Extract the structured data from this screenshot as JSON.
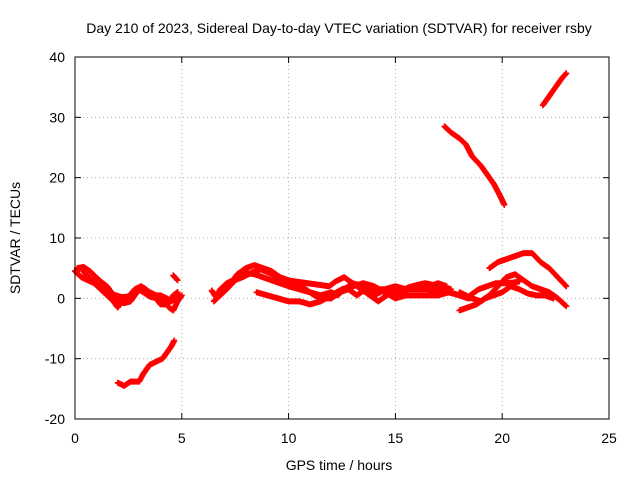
{
  "chart_data": {
    "type": "scatter",
    "title": "Day 210 of 2023, Sidereal Day-to-day VTEC variation (SDTVAR) for receiver rsby",
    "xlabel": "GPS time / hours",
    "ylabel": "SDTVAR / TECUs",
    "xlim": [
      0,
      25
    ],
    "ylim": [
      -20,
      40
    ],
    "xticks": [
      0,
      5,
      10,
      15,
      20,
      25
    ],
    "yticks": [
      -20,
      -10,
      0,
      10,
      20,
      30,
      40
    ],
    "grid": true,
    "legend": "none",
    "marker": "plus",
    "color": "#ff0000",
    "series": [
      {
        "name": "track-1",
        "points": [
          [
            0,
            4.5
          ],
          [
            0.3,
            3.5
          ],
          [
            0.6,
            3
          ],
          [
            0.9,
            2.5
          ],
          [
            1.2,
            1.5
          ],
          [
            1.5,
            0.5
          ],
          [
            1.8,
            -0.5
          ],
          [
            2.0,
            -1.5
          ],
          [
            2.2,
            -0.5
          ],
          [
            2.5,
            -0.5
          ],
          [
            2.7,
            0.8
          ],
          [
            3.0,
            1.5
          ],
          [
            3.2,
            1
          ],
          [
            3.5,
            0.3
          ],
          [
            3.8,
            0
          ],
          [
            4.0,
            -1
          ],
          [
            4.2,
            -1
          ],
          [
            4.4,
            -0.8
          ],
          [
            4.6,
            0.5
          ],
          [
            4.8,
            1
          ]
        ]
      },
      {
        "name": "track-2",
        "points": [
          [
            0,
            4.5
          ],
          [
            0.3,
            5
          ],
          [
            0.5,
            4
          ],
          [
            0.8,
            3
          ],
          [
            1.0,
            2.5
          ],
          [
            1.3,
            1.8
          ],
          [
            1.6,
            1
          ],
          [
            1.9,
            0.5
          ],
          [
            2.2,
            0.2
          ],
          [
            2.5,
            0.3
          ],
          [
            2.8,
            1.5
          ],
          [
            3.1,
            2
          ],
          [
            3.4,
            1
          ],
          [
            3.7,
            0.5
          ],
          [
            4.0,
            0.5
          ],
          [
            4.3,
            0
          ],
          [
            4.5,
            -0.5
          ],
          [
            4.7,
            0
          ],
          [
            4.8,
            1
          ]
        ]
      },
      {
        "name": "track-3",
        "points": [
          [
            0.1,
            5
          ],
          [
            0.4,
            5.2
          ],
          [
            0.7,
            4.5
          ],
          [
            0.9,
            3.8
          ],
          [
            1.2,
            2.8
          ],
          [
            1.5,
            2
          ],
          [
            1.8,
            0.5
          ],
          [
            2.0,
            -0.5
          ],
          [
            2.3,
            -0.8
          ],
          [
            2.6,
            -0.5
          ],
          [
            2.9,
            1
          ],
          [
            3.2,
            1.8
          ],
          [
            3.5,
            1
          ],
          [
            3.8,
            0.5
          ],
          [
            4.1,
            -0.3
          ],
          [
            4.4,
            -1.5
          ],
          [
            4.6,
            -2
          ],
          [
            4.8,
            -0.5
          ],
          [
            5.0,
            0.5
          ]
        ]
      },
      {
        "name": "track-4",
        "points": [
          [
            4.6,
            3.8
          ],
          [
            4.8,
            3
          ]
        ]
      },
      {
        "name": "track-5",
        "points": [
          [
            2.0,
            -14
          ],
          [
            2.3,
            -14.5
          ],
          [
            2.6,
            -13.8
          ],
          [
            3.0,
            -13.8
          ],
          [
            3.2,
            -12.5
          ],
          [
            3.5,
            -11
          ],
          [
            3.8,
            -10.5
          ],
          [
            4.1,
            -10
          ],
          [
            4.3,
            -9
          ],
          [
            4.5,
            -8
          ],
          [
            4.65,
            -7
          ]
        ]
      },
      {
        "name": "track-6",
        "points": [
          [
            6.4,
            1.3
          ],
          [
            6.6,
            0.2
          ],
          [
            6.8,
            1.5
          ],
          [
            7.1,
            2.5
          ],
          [
            7.4,
            3
          ],
          [
            7.7,
            4
          ],
          [
            8.0,
            4.2
          ],
          [
            8.4,
            4
          ],
          [
            8.8,
            3.5
          ],
          [
            9.2,
            3
          ],
          [
            9.6,
            2.5
          ],
          [
            10.0,
            2
          ],
          [
            10.5,
            1.5
          ],
          [
            11.0,
            1
          ],
          [
            11.5,
            0.5
          ],
          [
            12.0,
            1
          ],
          [
            12.3,
            0.5
          ],
          [
            12.6,
            1.5
          ],
          [
            13.0,
            2.5
          ],
          [
            13.5,
            2
          ],
          [
            14.0,
            1.5
          ],
          [
            14.5,
            1.5
          ],
          [
            15.0,
            2
          ],
          [
            15.5,
            1.5
          ],
          [
            16.0,
            1.5
          ],
          [
            16.5,
            1.5
          ],
          [
            17.0,
            1.2
          ],
          [
            17.5,
            1
          ],
          [
            18.0,
            0.5
          ],
          [
            18.4,
            0
          ]
        ]
      },
      {
        "name": "track-7",
        "points": [
          [
            6.5,
            -0.5
          ],
          [
            6.8,
            0.5
          ],
          [
            7.1,
            1.5
          ],
          [
            7.5,
            3
          ],
          [
            7.9,
            3.6
          ],
          [
            8.3,
            4.3
          ],
          [
            8.7,
            4.8
          ],
          [
            9.1,
            4.2
          ],
          [
            9.5,
            3.5
          ],
          [
            9.9,
            3
          ],
          [
            10.3,
            2.8
          ],
          [
            10.7,
            2.6
          ],
          [
            11.1,
            2.4
          ],
          [
            11.5,
            2.2
          ],
          [
            11.9,
            2
          ],
          [
            12.2,
            2.8
          ],
          [
            12.6,
            3.5
          ],
          [
            13.0,
            2.5
          ],
          [
            13.4,
            1.5
          ],
          [
            13.8,
            0.5
          ],
          [
            14.2,
            -0.5
          ],
          [
            14.6,
            0.5
          ],
          [
            15.0,
            1.5
          ],
          [
            15.4,
            1.2
          ],
          [
            15.8,
            2
          ],
          [
            16.2,
            1.8
          ],
          [
            16.6,
            2
          ],
          [
            17.0,
            2.5
          ],
          [
            17.4,
            2
          ]
        ]
      },
      {
        "name": "track-8",
        "points": [
          [
            6.8,
            0.5
          ],
          [
            7.2,
            2
          ],
          [
            7.6,
            4
          ],
          [
            8.0,
            5
          ],
          [
            8.4,
            5.5
          ],
          [
            8.8,
            5
          ],
          [
            9.2,
            4.5
          ],
          [
            9.6,
            3.5
          ],
          [
            10.0,
            3
          ],
          [
            10.4,
            2.5
          ],
          [
            10.8,
            1.5
          ],
          [
            11.2,
            0.5
          ],
          [
            11.6,
            0
          ],
          [
            12.0,
            0
          ],
          [
            12.4,
            1
          ],
          [
            12.8,
            1.5
          ],
          [
            13.2,
            0.5
          ],
          [
            13.6,
            1.5
          ],
          [
            14.0,
            0.5
          ],
          [
            14.4,
            1.2
          ],
          [
            14.8,
            0.8
          ],
          [
            15.2,
            1
          ],
          [
            15.6,
            1.8
          ],
          [
            16.0,
            2.2
          ],
          [
            16.4,
            2.5
          ],
          [
            16.8,
            2.2
          ],
          [
            17.2,
            1.8
          ],
          [
            17.6,
            1.5
          ]
        ]
      },
      {
        "name": "track-9",
        "points": [
          [
            8.5,
            1
          ],
          [
            9.0,
            0.5
          ],
          [
            9.5,
            0
          ],
          [
            10.0,
            -0.5
          ],
          [
            10.5,
            -0.5
          ],
          [
            11.0,
            -1
          ],
          [
            11.5,
            -0.5
          ],
          [
            12.0,
            0.5
          ],
          [
            12.5,
            1.5
          ],
          [
            13.0,
            2
          ],
          [
            13.5,
            2.5
          ],
          [
            14.0,
            2
          ],
          [
            14.5,
            1
          ],
          [
            15.0,
            0
          ],
          [
            15.5,
            0.5
          ],
          [
            16.0,
            0.5
          ],
          [
            16.5,
            0.5
          ],
          [
            17.0,
            0.5
          ],
          [
            17.5,
            1
          ],
          [
            18.0,
            0.5
          ],
          [
            18.5,
            0
          ]
        ]
      },
      {
        "name": "track-10",
        "points": [
          [
            17.3,
            28.5
          ],
          [
            17.6,
            27.5
          ],
          [
            18.0,
            26.5
          ],
          [
            18.3,
            25.5
          ],
          [
            18.6,
            23.5
          ],
          [
            19.0,
            22
          ],
          [
            19.3,
            20.5
          ],
          [
            19.6,
            19
          ],
          [
            19.9,
            17
          ],
          [
            20.1,
            15.5
          ]
        ]
      },
      {
        "name": "track-11",
        "points": [
          [
            21.9,
            32
          ],
          [
            22.2,
            33.5
          ],
          [
            22.5,
            35
          ],
          [
            22.8,
            36.5
          ],
          [
            23.0,
            37.3
          ]
        ]
      },
      {
        "name": "track-12",
        "points": [
          [
            18.0,
            1
          ],
          [
            18.3,
            0.5
          ],
          [
            18.6,
            0
          ],
          [
            19.0,
            -0.5
          ],
          [
            19.4,
            0.5
          ],
          [
            19.8,
            2
          ],
          [
            20.2,
            3.5
          ],
          [
            20.6,
            4
          ],
          [
            21.0,
            3
          ],
          [
            21.4,
            2
          ],
          [
            21.8,
            1.5
          ],
          [
            22.2,
            1
          ],
          [
            22.6,
            0
          ],
          [
            23.0,
            -1.3
          ]
        ]
      },
      {
        "name": "track-13",
        "points": [
          [
            18.0,
            -2
          ],
          [
            18.4,
            -1.5
          ],
          [
            18.8,
            -1
          ],
          [
            19.2,
            0
          ],
          [
            19.6,
            0.5
          ],
          [
            20.0,
            1
          ],
          [
            20.4,
            2
          ],
          [
            20.8,
            1.5
          ],
          [
            21.2,
            0.8
          ],
          [
            21.6,
            0.5
          ],
          [
            22.0,
            0.5
          ],
          [
            22.4,
            0
          ]
        ]
      },
      {
        "name": "track-14",
        "points": [
          [
            19.4,
            5
          ],
          [
            19.8,
            6
          ],
          [
            20.2,
            6.5
          ],
          [
            20.6,
            7
          ],
          [
            21.0,
            7.5
          ],
          [
            21.4,
            7.5
          ],
          [
            21.8,
            6
          ],
          [
            22.2,
            5
          ],
          [
            22.6,
            3.5
          ],
          [
            23.0,
            2
          ]
        ]
      },
      {
        "name": "track-15",
        "points": [
          [
            18.5,
            0.5
          ],
          [
            18.9,
            1.5
          ],
          [
            19.3,
            2
          ],
          [
            19.7,
            2.5
          ],
          [
            20.1,
            2.5
          ],
          [
            20.5,
            2.6
          ],
          [
            20.8,
            2.8
          ]
        ]
      }
    ]
  }
}
